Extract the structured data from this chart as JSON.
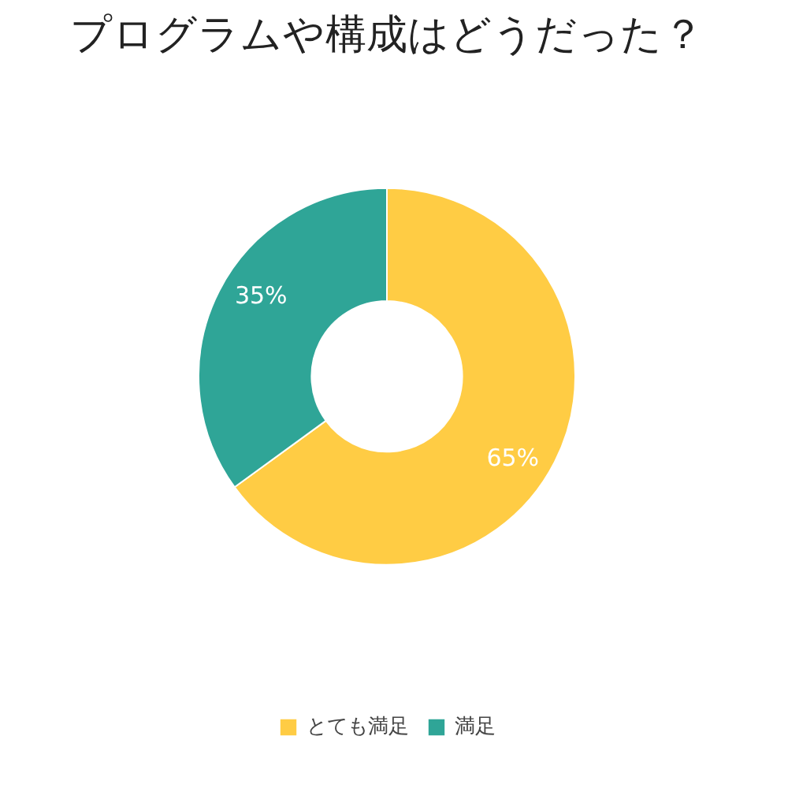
{
  "chart_data": {
    "type": "donut",
    "title": "プログラムや構成はどうだった？",
    "categories": [
      "とても満足",
      "満足"
    ],
    "values": [
      65,
      35
    ],
    "colors": [
      "#ffcc44",
      "#2fa597"
    ],
    "value_labels": [
      "65%",
      "35%"
    ],
    "legend": "bottom"
  }
}
